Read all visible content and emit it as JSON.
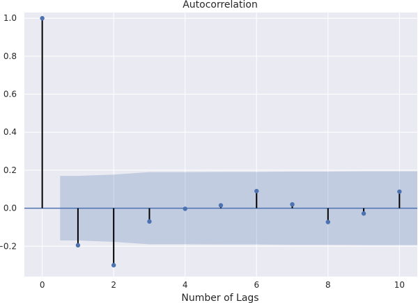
{
  "chart_data": {
    "type": "stem",
    "title": "Autocorrelation",
    "xlabel": "Number of Lags",
    "ylabel": "",
    "xlim": [
      -0.5,
      10.5
    ],
    "ylim": [
      -0.36,
      1.03
    ],
    "x_ticks": [
      0,
      2,
      4,
      6,
      8,
      10
    ],
    "y_ticks": [
      -0.2,
      0.0,
      0.2,
      0.4,
      0.6,
      0.8,
      1.0
    ],
    "x_tick_labels": [
      "0",
      "2",
      "4",
      "6",
      "8",
      "10"
    ],
    "y_tick_labels": [
      "−0.2",
      "0.0",
      "0.2",
      "0.4",
      "0.6",
      "0.8",
      "1.0"
    ],
    "grid": true,
    "lags": [
      0,
      1,
      2,
      3,
      4,
      5,
      6,
      7,
      8,
      9,
      10
    ],
    "values": [
      1.0,
      -0.195,
      -0.3,
      -0.07,
      -0.003,
      0.015,
      0.09,
      0.02,
      -0.073,
      -0.028,
      0.087
    ],
    "confidence_band": {
      "x": [
        0.5,
        1,
        2,
        3,
        4,
        5,
        6,
        7,
        8,
        9,
        10,
        10.5
      ],
      "upper": [
        0.17,
        0.17,
        0.177,
        0.19,
        0.19,
        0.191,
        0.191,
        0.193,
        0.193,
        0.194,
        0.194,
        0.194
      ],
      "lower": [
        -0.17,
        -0.17,
        -0.177,
        -0.19,
        -0.19,
        -0.191,
        -0.191,
        -0.193,
        -0.193,
        -0.194,
        -0.194,
        -0.194
      ]
    },
    "colors": {
      "background": "#eaeaf2",
      "grid": "#ffffff",
      "marker": "#4c72b0",
      "stem": "#000000",
      "band": "#4c72b0",
      "zero_line": "#4c72b0"
    }
  }
}
